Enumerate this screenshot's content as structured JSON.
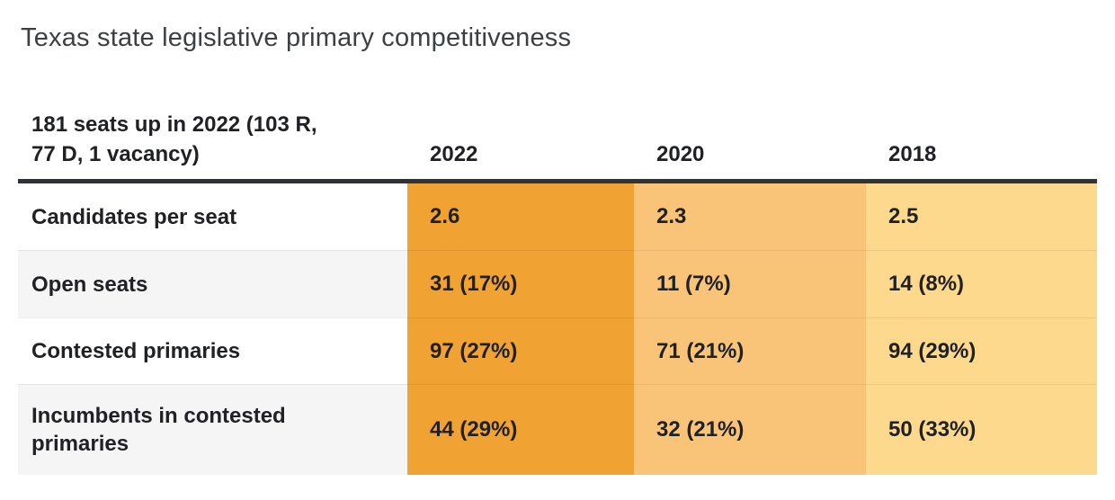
{
  "title": "Texas state legislative primary competitiveness",
  "table": {
    "header": {
      "label": "181 seats up in 2022 (103 R, 77 D, 1 vacancy)",
      "columns": [
        "2022",
        "2020",
        "2018"
      ]
    },
    "rows": [
      {
        "label": "Candidates per seat",
        "values": [
          "2.6",
          "2.3",
          "2.5"
        ]
      },
      {
        "label": "Open seats",
        "values": [
          "31 (17%)",
          "11 (7%)",
          "14 (8%)"
        ]
      },
      {
        "label": "Contested primaries",
        "values": [
          "97 (27%)",
          "71 (21%)",
          "94 (29%)"
        ]
      },
      {
        "label": "Incumbents in contested primaries",
        "values": [
          "44 (29%)",
          "32 (21%)",
          "50 (33%)"
        ]
      }
    ]
  },
  "colors": {
    "col_2022": "#F0A233",
    "col_2020": "#F9C478",
    "col_2018": "#FCD98D",
    "header_border": "#2F3337",
    "text": "#202124",
    "title": "#3C4043",
    "zebra_row": "#F5F5F6"
  },
  "chart_data": {
    "type": "table",
    "title": "Texas state legislative primary competitiveness",
    "row_header": "181 seats up in 2022 (103 R, 77 D, 1 vacancy)",
    "columns": [
      "2022",
      "2020",
      "2018"
    ],
    "rows": [
      {
        "label": "Candidates per seat",
        "values": [
          2.6,
          2.3,
          2.5
        ]
      },
      {
        "label": "Open seats",
        "values": [
          "31 (17%)",
          "11 (7%)",
          "14 (8%)"
        ]
      },
      {
        "label": "Contested primaries",
        "values": [
          "97 (27%)",
          "71 (21%)",
          "94 (29%)"
        ]
      },
      {
        "label": "Incumbents in contested primaries",
        "values": [
          "44 (29%)",
          "32 (21%)",
          "50 (33%)"
        ]
      }
    ],
    "legend_position": "none",
    "heatmap_column_colors": {
      "2022": "#F0A233",
      "2020": "#F9C478",
      "2018": "#FCD98D"
    }
  }
}
